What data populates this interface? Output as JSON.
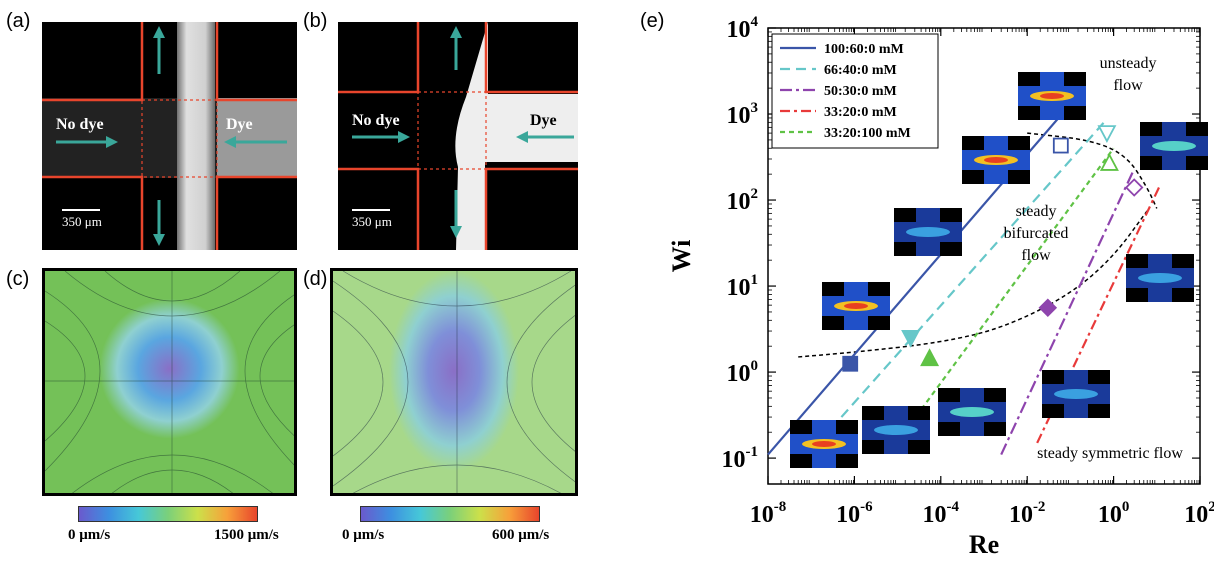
{
  "panel_labels": {
    "a": "(a)",
    "b": "(b)",
    "c": "(c)",
    "d": "(d)",
    "e": "(e)"
  },
  "panel_a": {
    "no_dye": "No dye",
    "dye": "Dye",
    "scale": "350 μm"
  },
  "panel_b": {
    "no_dye": "No dye",
    "dye": "Dye",
    "scale": "350 μm"
  },
  "colorbar_c": {
    "min": "0 μm/s",
    "max": "1500 μm/s"
  },
  "colorbar_d": {
    "min": "0 μm/s",
    "max": "600 μm/s"
  },
  "colors": {
    "teal_arrow": "#3aa79a",
    "channel_outline": "#e8452c",
    "flow_green": "#6fbf5a",
    "flow_blue": "#5aa6e0",
    "flow_purple": "#8a6fc6"
  },
  "chart_data": {
    "type": "line",
    "xlabel": "Re",
    "ylabel": "Wi",
    "xscale": "log",
    "yscale": "log",
    "xlim": [
      1e-08,
      100
    ],
    "ylim": [
      0.05,
      10000
    ],
    "x_ticks": [
      {
        "v": 1e-08,
        "base": "10",
        "exp": "-8"
      },
      {
        "v": 1e-06,
        "base": "10",
        "exp": "-6"
      },
      {
        "v": 0.0001,
        "base": "10",
        "exp": "-4"
      },
      {
        "v": 0.01,
        "base": "10",
        "exp": "-2"
      },
      {
        "v": 1,
        "base": "10",
        "exp": "0"
      },
      {
        "v": 100,
        "base": "10",
        "exp": "2"
      }
    ],
    "y_ticks": [
      {
        "v": 0.1,
        "base": "10",
        "exp": "-1"
      },
      {
        "v": 1,
        "base": "10",
        "exp": "0"
      },
      {
        "v": 10,
        "base": "10",
        "exp": "1"
      },
      {
        "v": 100,
        "base": "10",
        "exp": "2"
      },
      {
        "v": 1000,
        "base": "10",
        "exp": "3"
      },
      {
        "v": 10000,
        "base": "10",
        "exp": "4"
      }
    ],
    "legend_position": "top-left",
    "series": [
      {
        "name": "100:60:0 mM",
        "color": "#3a55a8",
        "dash": "",
        "marker": "square",
        "line": [
          [
            1e-08,
            0.11
          ],
          [
            0.1,
            1300
          ]
        ],
        "points": [
          {
            "x": 8e-07,
            "y": 1.25,
            "filled": true
          },
          {
            "x": 0.06,
            "y": 430,
            "filled": false
          }
        ]
      },
      {
        "name": "66:40:0 mM",
        "color": "#66c7c9",
        "dash": "10,6",
        "marker": "triangle-down",
        "line": [
          [
            5e-07,
            0.3
          ],
          [
            0.6,
            800
          ]
        ],
        "points": [
          {
            "x": 2e-05,
            "y": 2.5,
            "filled": true
          },
          {
            "x": 0.7,
            "y": 600,
            "filled": false
          }
        ]
      },
      {
        "name": "50:30:0 mM",
        "color": "#8e44ad",
        "dash": "12,4,3,4",
        "marker": "diamond",
        "line": [
          [
            0.0025,
            0.11
          ],
          [
            3,
            230
          ]
        ],
        "points": [
          {
            "x": 0.03,
            "y": 5.6,
            "filled": true
          },
          {
            "x": 3,
            "y": 140,
            "filled": false
          }
        ]
      },
      {
        "name": "33:20:0 mM",
        "color": "#e83a3a",
        "dash": "10,4,3,4",
        "marker": "none",
        "line": [
          [
            0.017,
            0.15
          ],
          [
            12,
            150
          ]
        ],
        "points": []
      },
      {
        "name": "33:20:100 mM",
        "color": "#5fc245",
        "dash": "5,4",
        "marker": "triangle-up",
        "line": [
          [
            2e-05,
            0.25
          ],
          [
            1,
            400
          ]
        ],
        "points": [
          {
            "x": 5.5e-05,
            "y": 1.45,
            "filled": true
          },
          {
            "x": 0.8,
            "y": 270,
            "filled": false
          }
        ]
      }
    ],
    "boundaries": [
      {
        "points": [
          [
            5e-08,
            1.5
          ],
          [
            1e-06,
            1.7
          ],
          [
            0.0001,
            2.2
          ],
          [
            0.003,
            3.3
          ],
          [
            0.1,
            8
          ],
          [
            1,
            22
          ],
          [
            6,
            75
          ]
        ]
      },
      {
        "points": [
          [
            0.01,
            600
          ],
          [
            0.3,
            500
          ],
          [
            2,
            330
          ],
          [
            6,
            140
          ],
          [
            10,
            80
          ]
        ]
      }
    ],
    "annotations": {
      "unsteady": [
        "unsteady",
        "flow"
      ],
      "bifurcated": [
        "steady",
        "bifurcated",
        "flow"
      ],
      "symmetric": "steady symmetric flow"
    }
  }
}
